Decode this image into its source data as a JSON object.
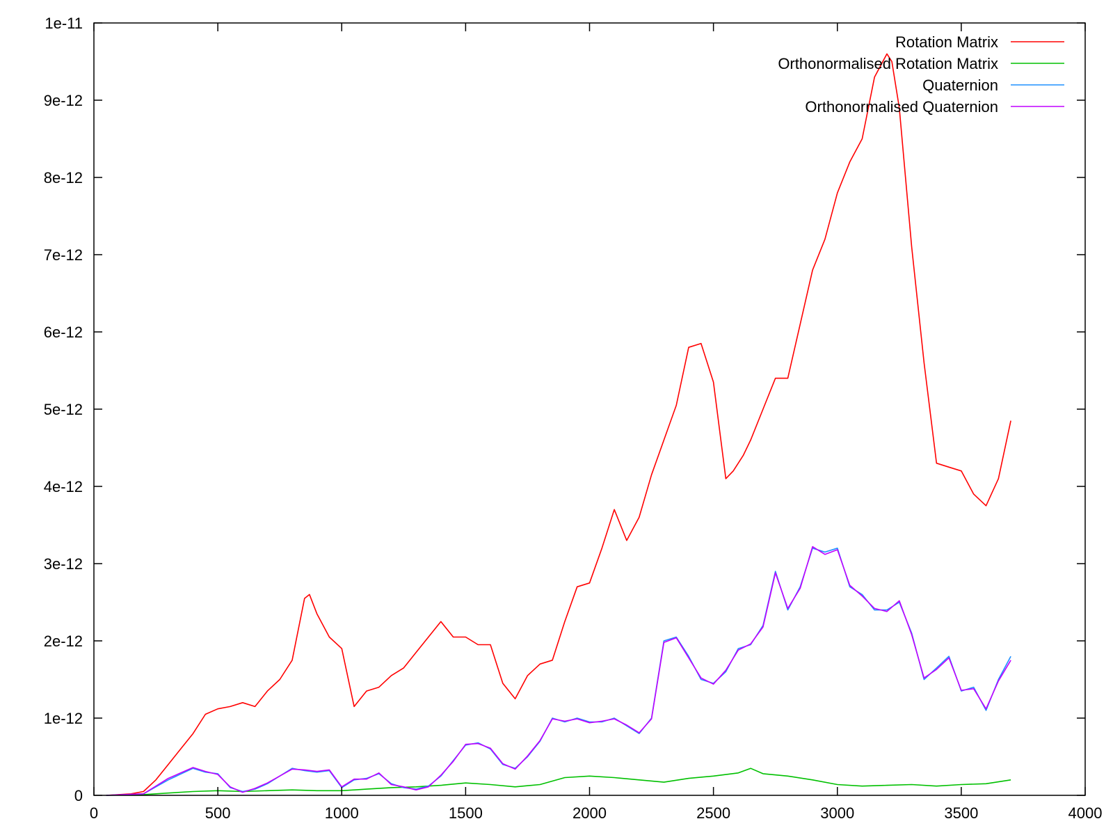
{
  "chart_data": {
    "type": "line",
    "title": "",
    "xlabel": "",
    "ylabel": "",
    "xlim": [
      0,
      4000
    ],
    "ylim": [
      0,
      1e-11
    ],
    "grid": false,
    "legend_position": "top-right",
    "x_ticks": [
      "0",
      "500",
      "1000",
      "1500",
      "2000",
      "2500",
      "3000",
      "3500",
      "4000"
    ],
    "y_ticks": [
      "0",
      "1e-12",
      "2e-12",
      "3e-12",
      "4e-12",
      "5e-12",
      "6e-12",
      "7e-12",
      "8e-12",
      "9e-12",
      "1e-11"
    ],
    "series": [
      {
        "name": "Rotation Matrix",
        "color": "#ff0000",
        "x": [
          50,
          100,
          150,
          200,
          250,
          300,
          350,
          400,
          450,
          500,
          550,
          600,
          650,
          700,
          750,
          800,
          850,
          870,
          900,
          950,
          1000,
          1050,
          1100,
          1150,
          1200,
          1250,
          1300,
          1350,
          1400,
          1450,
          1500,
          1550,
          1600,
          1650,
          1700,
          1750,
          1800,
          1850,
          1900,
          1950,
          2000,
          2050,
          2100,
          2150,
          2200,
          2250,
          2300,
          2350,
          2400,
          2450,
          2500,
          2550,
          2580,
          2620,
          2650,
          2700,
          2750,
          2800,
          2850,
          2900,
          2950,
          3000,
          3050,
          3100,
          3150,
          3200,
          3220,
          3250,
          3300,
          3350,
          3400,
          3450,
          3500,
          3550,
          3600,
          3650,
          3700
        ],
        "y": [
          0,
          1e-14,
          2e-14,
          5e-14,
          2e-13,
          4e-13,
          6e-13,
          8e-13,
          1.05e-12,
          1.12e-12,
          1.15e-12,
          1.2e-12,
          1.15e-12,
          1.35e-12,
          1.5e-12,
          1.75e-12,
          2.55e-12,
          2.6e-12,
          2.35e-12,
          2.05e-12,
          1.9e-12,
          1.15e-12,
          1.35e-12,
          1.4e-12,
          1.55e-12,
          1.65e-12,
          1.85e-12,
          2.05e-12,
          2.25e-12,
          2.05e-12,
          2.05e-12,
          1.95e-12,
          1.95e-12,
          1.45e-12,
          1.25e-12,
          1.55e-12,
          1.7e-12,
          1.75e-12,
          2.25e-12,
          2.7e-12,
          2.75e-12,
          3.2e-12,
          3.7e-12,
          3.3e-12,
          3.6e-12,
          4.15e-12,
          4.6e-12,
          5.05e-12,
          5.8e-12,
          5.85e-12,
          5.35e-12,
          4.1e-12,
          4.2e-12,
          4.4e-12,
          4.6e-12,
          5e-12,
          5.4e-12,
          5.4e-12,
          6.1e-12,
          6.8e-12,
          7.2e-12,
          7.8e-12,
          8.2e-12,
          8.5e-12,
          9.3e-12,
          9.6e-12,
          9.5e-12,
          8.9e-12,
          7.1e-12,
          5.6e-12,
          4.3e-12,
          4.25e-12,
          4.2e-12,
          3.9e-12,
          3.75e-12,
          4.1e-12,
          4.85e-12
        ]
      },
      {
        "name": "Orthonormalised Rotation Matrix",
        "color": "#00c000",
        "x": [
          50,
          200,
          300,
          400,
          500,
          600,
          700,
          800,
          900,
          1000,
          1100,
          1200,
          1300,
          1400,
          1500,
          1600,
          1700,
          1800,
          1900,
          2000,
          2100,
          2200,
          2300,
          2400,
          2500,
          2600,
          2650,
          2700,
          2800,
          2900,
          3000,
          3100,
          3200,
          3300,
          3400,
          3500,
          3600,
          3700
        ],
        "y": [
          0,
          1e-14,
          3e-14,
          5e-14,
          6e-14,
          5e-14,
          6e-14,
          7e-14,
          6e-14,
          6e-14,
          8e-14,
          1e-13,
          1.1e-13,
          1.3e-13,
          1.6e-13,
          1.4e-13,
          1.1e-13,
          1.4e-13,
          2.3e-13,
          2.5e-13,
          2.3e-13,
          2e-13,
          1.7e-13,
          2.2e-13,
          2.5e-13,
          2.9e-13,
          3.5e-13,
          2.8e-13,
          2.5e-13,
          2e-13,
          1.4e-13,
          1.2e-13,
          1.3e-13,
          1.4e-13,
          1.2e-13,
          1.4e-13,
          1.5e-13,
          2e-13
        ]
      },
      {
        "name": "Quaternion",
        "color": "#1e90ff",
        "x": [
          50,
          200,
          300,
          400,
          450,
          500,
          550,
          600,
          650,
          700,
          800,
          850,
          900,
          950,
          1000,
          1050,
          1100,
          1150,
          1200,
          1250,
          1300,
          1350,
          1400,
          1450,
          1500,
          1550,
          1600,
          1650,
          1700,
          1750,
          1800,
          1850,
          1900,
          1950,
          2000,
          2050,
          2100,
          2150,
          2200,
          2250,
          2300,
          2350,
          2400,
          2450,
          2500,
          2550,
          2600,
          2650,
          2700,
          2750,
          2800,
          2850,
          2900,
          2950,
          3000,
          3050,
          3100,
          3150,
          3200,
          3250,
          3300,
          3350,
          3400,
          3450,
          3500,
          3550,
          3600,
          3650,
          3700
        ],
        "y": [
          0,
          2e-14,
          2e-13,
          3.5e-13,
          3e-13,
          2.8e-13,
          1e-13,
          5e-14,
          8e-14,
          1.5e-13,
          3.5e-13,
          3.2e-13,
          3e-13,
          3.2e-13,
          1e-13,
          2e-13,
          2.2e-13,
          2.8e-13,
          1.5e-13,
          1e-13,
          8e-14,
          1.2e-13,
          2.5e-13,
          4.5e-13,
          6.5e-13,
          6.8e-13,
          6e-13,
          4e-13,
          3.5e-13,
          5e-13,
          7e-13,
          1e-12,
          9.5e-13,
          1e-12,
          9.5e-13,
          9.5e-13,
          1e-12,
          9e-13,
          8e-13,
          1e-12,
          2e-12,
          2.05e-12,
          1.8e-12,
          1.5e-12,
          1.45e-12,
          1.6e-12,
          1.9e-12,
          1.95e-12,
          2.2e-12,
          2.9e-12,
          2.4e-12,
          2.7e-12,
          3.2e-12,
          3.15e-12,
          3.2e-12,
          2.7e-12,
          2.6e-12,
          2.4e-12,
          2.4e-12,
          2.5e-12,
          2.1e-12,
          1.5e-12,
          1.65e-12,
          1.8e-12,
          1.35e-12,
          1.4e-12,
          1.1e-12,
          1.5e-12,
          1.8e-12
        ]
      },
      {
        "name": "Orthonormalised Quaternion",
        "color": "#c000ff",
        "x": [
          50,
          200,
          300,
          400,
          450,
          500,
          550,
          600,
          650,
          700,
          800,
          850,
          900,
          950,
          1000,
          1050,
          1100,
          1150,
          1200,
          1250,
          1300,
          1350,
          1400,
          1450,
          1500,
          1550,
          1600,
          1650,
          1700,
          1750,
          1800,
          1850,
          1900,
          1950,
          2000,
          2050,
          2100,
          2150,
          2200,
          2250,
          2300,
          2350,
          2400,
          2450,
          2500,
          2550,
          2600,
          2650,
          2700,
          2750,
          2800,
          2850,
          2900,
          2950,
          3000,
          3050,
          3100,
          3150,
          3200,
          3250,
          3300,
          3350,
          3400,
          3450,
          3500,
          3550,
          3600,
          3650,
          3700
        ],
        "y": [
          0,
          2e-14,
          2.2e-13,
          3.6e-13,
          3.1e-13,
          2.7e-13,
          1.1e-13,
          4e-14,
          9e-14,
          1.6e-13,
          3.4e-13,
          3.3e-13,
          3.1e-13,
          3.3e-13,
          1.1e-13,
          2.1e-13,
          2.1e-13,
          2.9e-13,
          1.4e-13,
          1.1e-13,
          7e-14,
          1.1e-13,
          2.6e-13,
          4.4e-13,
          6.6e-13,
          6.7e-13,
          6.1e-13,
          4.1e-13,
          3.4e-13,
          5.1e-13,
          7.1e-13,
          9.9e-13,
          9.6e-13,
          9.9e-13,
          9.4e-13,
          9.6e-13,
          9.9e-13,
          9.1e-13,
          8.1e-13,
          9.9e-13,
          1.98e-12,
          2.04e-12,
          1.78e-12,
          1.52e-12,
          1.44e-12,
          1.62e-12,
          1.88e-12,
          1.96e-12,
          2.18e-12,
          2.88e-12,
          2.42e-12,
          2.68e-12,
          3.22e-12,
          3.12e-12,
          3.18e-12,
          2.72e-12,
          2.58e-12,
          2.42e-12,
          2.38e-12,
          2.52e-12,
          2.08e-12,
          1.52e-12,
          1.63e-12,
          1.78e-12,
          1.36e-12,
          1.38e-12,
          1.12e-12,
          1.48e-12,
          1.75e-12
        ]
      }
    ]
  }
}
